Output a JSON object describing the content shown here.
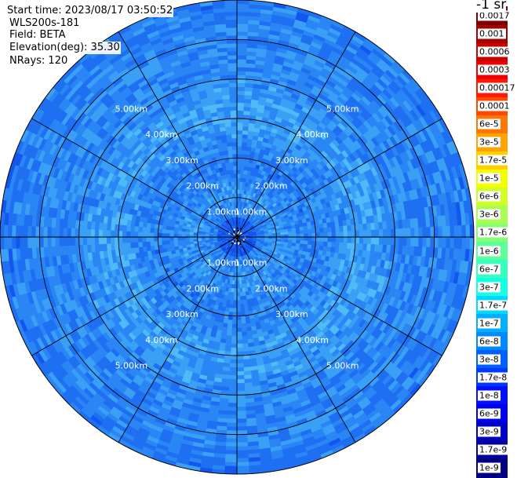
{
  "header": {
    "start_time": "Start time: 2023/08/17 03:50:52",
    "instrument": "WLS200s-181",
    "field": "Field: BETA",
    "elevation": "Elevation(deg): 35.30",
    "nrays": "NRays: 120"
  },
  "colorbar": {
    "unit": "-1 sr",
    "ticks": [
      "0.0017",
      "0.001",
      "0.0006",
      "0.0003",
      "0.00017",
      "0.0001",
      "6e-5",
      "3e-5",
      "1.7e-5",
      "1e-5",
      "6e-6",
      "3e-6",
      "1.7e-6",
      "1e-6",
      "6e-7",
      "3e-7",
      "1.7e-7",
      "1e-7",
      "6e-8",
      "3e-8",
      "1.7e-8",
      "1e-8",
      "6e-9",
      "3e-9",
      "1.7e-9",
      "1e-9"
    ],
    "colors": [
      "#7f0000",
      "#a40000",
      "#c80000",
      "#ee0000",
      "#ff1a00",
      "#ff4800",
      "#ff7600",
      "#ffa300",
      "#ffd000",
      "#f5ff00",
      "#d0ff28",
      "#a9ff4d",
      "#83ff74",
      "#5dff9a",
      "#38ffbf",
      "#12ffe4",
      "#00d8ff",
      "#00b0ff",
      "#0088ff",
      "#0060ff",
      "#0038ff",
      "#0010ff",
      "#0000ec",
      "#0000c4",
      "#00009c",
      "#000080"
    ]
  },
  "chart_data": {
    "type": "heatmap",
    "projection": "polar (PPI scan)",
    "field": "BETA",
    "nrays": 120,
    "range_rings_km": [
      1,
      2,
      3,
      4,
      5
    ],
    "ring_labels": [
      "1.00km",
      "2.00km",
      "3.00km",
      "4.00km",
      "5.00km"
    ],
    "max_range_km": 6,
    "spoke_count": 12,
    "color_scale": "log",
    "value_range": [
      1e-09,
      0.0017
    ],
    "dominant_values": "mostly 1e-8 to 1e-7 (blue to cyan), lighter cyan near 1 km and 3 km, darker blue near center"
  }
}
